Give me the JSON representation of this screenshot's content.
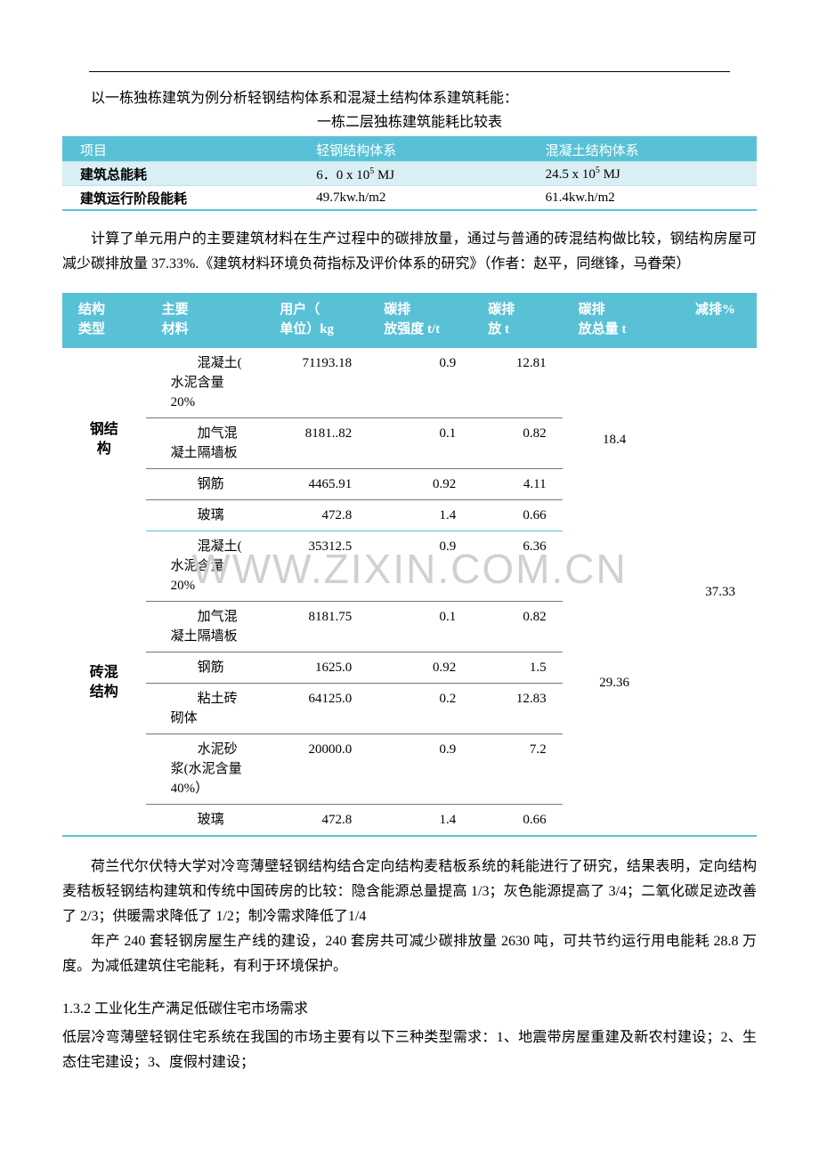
{
  "intro": {
    "line1": "以一栋独栋建筑为例分析轻钢结构体系和混凝土结构体系建筑耗能：",
    "table_title": "一栋二层独栋建筑能耗比较表"
  },
  "table1": {
    "headers": [
      "项目",
      "轻钢结构体系",
      "混凝土结构体系"
    ],
    "rows": [
      {
        "label": "建筑总能耗",
        "v1_pre": "6．0 x 10",
        "v1_sup": "5",
        "v1_post": " MJ",
        "v2_pre": "24.5 x 10",
        "v2_sup": "5",
        "v2_post": " MJ",
        "even": true
      },
      {
        "label": "建筑运行阶段能耗",
        "v1_pre": "49.7kw.h/m2",
        "v1_sup": "",
        "v1_post": "",
        "v2_pre": "61.4kw.h/m2",
        "v2_sup": "",
        "v2_post": "",
        "even": false
      }
    ]
  },
  "para2a": "计算了单元用户的主要建筑材料在生产过程中的碳排放量，通过与普通的砖混结构做比较，钢结构房屋可减少碳排放量 37.33%.《建筑材料环境负荷指标及评价体系的研究》（作者：赵平，同继锋，马眷荣）",
  "table2": {
    "headers": [
      [
        "结构",
        "类型"
      ],
      [
        "主要",
        "材料"
      ],
      [
        "用户（",
        "单位）kg"
      ],
      [
        "碳排",
        "放强度 t/t"
      ],
      [
        "碳排",
        "放 t"
      ],
      [
        "碳排",
        "放总量 t"
      ],
      [
        "减排%",
        ""
      ]
    ],
    "groups": [
      {
        "stype": "钢结\n构",
        "total": "18.4",
        "rows": [
          {
            "mat": "混凝土(\n水泥含量\n20%",
            "c1": "71193.18",
            "c2": "0.9",
            "c3": "12.81"
          },
          {
            "mat": "加气混\n凝土隔墙板",
            "c1": "8181..82",
            "c2": "0.1",
            "c3": "0.82"
          },
          {
            "mat": "钢筋",
            "c1": "4465.91",
            "c2": "0.92",
            "c3": "4.11"
          },
          {
            "mat": "玻璃",
            "c1": "472.8",
            "c2": "1.4",
            "c3": "0.66"
          }
        ]
      },
      {
        "stype": "砖混\n结构",
        "total": "29.36",
        "rows": [
          {
            "mat": "混凝土(\n水泥含量\n20%",
            "c1": "35312.5",
            "c2": "0.9",
            "c3": "6.36"
          },
          {
            "mat": "加气混\n凝土隔墙板",
            "c1": "8181.75",
            "c2": "0.1",
            "c3": "0.82"
          },
          {
            "mat": "钢筋",
            "c1": "1625.0",
            "c2": "0.92",
            "c3": "1.5"
          },
          {
            "mat": "粘土砖\n砌体",
            "c1": "64125.0",
            "c2": "0.2",
            "c3": "12.83"
          },
          {
            "mat": "水泥砂\n浆(水泥含量\n40%）",
            "c1": "20000.0",
            "c2": "0.9",
            "c3": "7.2"
          },
          {
            "mat": "玻璃",
            "c1": "472.8",
            "c2": "1.4",
            "c3": "0.66"
          }
        ]
      }
    ],
    "reduction": "37.33"
  },
  "para3a": "荷兰代尔伏特大学对冷弯薄壁轻钢结构结合定向结构麦秸板系统的耗能进行了研究，结果表明，定向结构麦秸板轻钢结构建筑和传统中国砖房的比较：隐含能源总量提高 1/3；灰色能源提高了 3/4；二氧化碳足迹改善了 2/3；供暖需求降低了 1/2；制冷需求降低了1/4",
  "para3b": "年产 240 套轻钢房屋生产线的建设，240 套房共可减少碳排放量 2630 吨，可共节约运行用电能耗 28.8 万度。为减低建筑住宅能耗，有利于环境保护。",
  "section_num": "1.3.2 工业化生产满足低碳住宅市场需求",
  "para4": "低层冷弯薄壁轻钢住宅系统在我国的市场主要有以下三种类型需求：1、地震带房屋重建及新农村建设；2、生态住宅建设；3、度假村建设；",
  "watermark": "WWW.ZIXIN.COM.CN"
}
